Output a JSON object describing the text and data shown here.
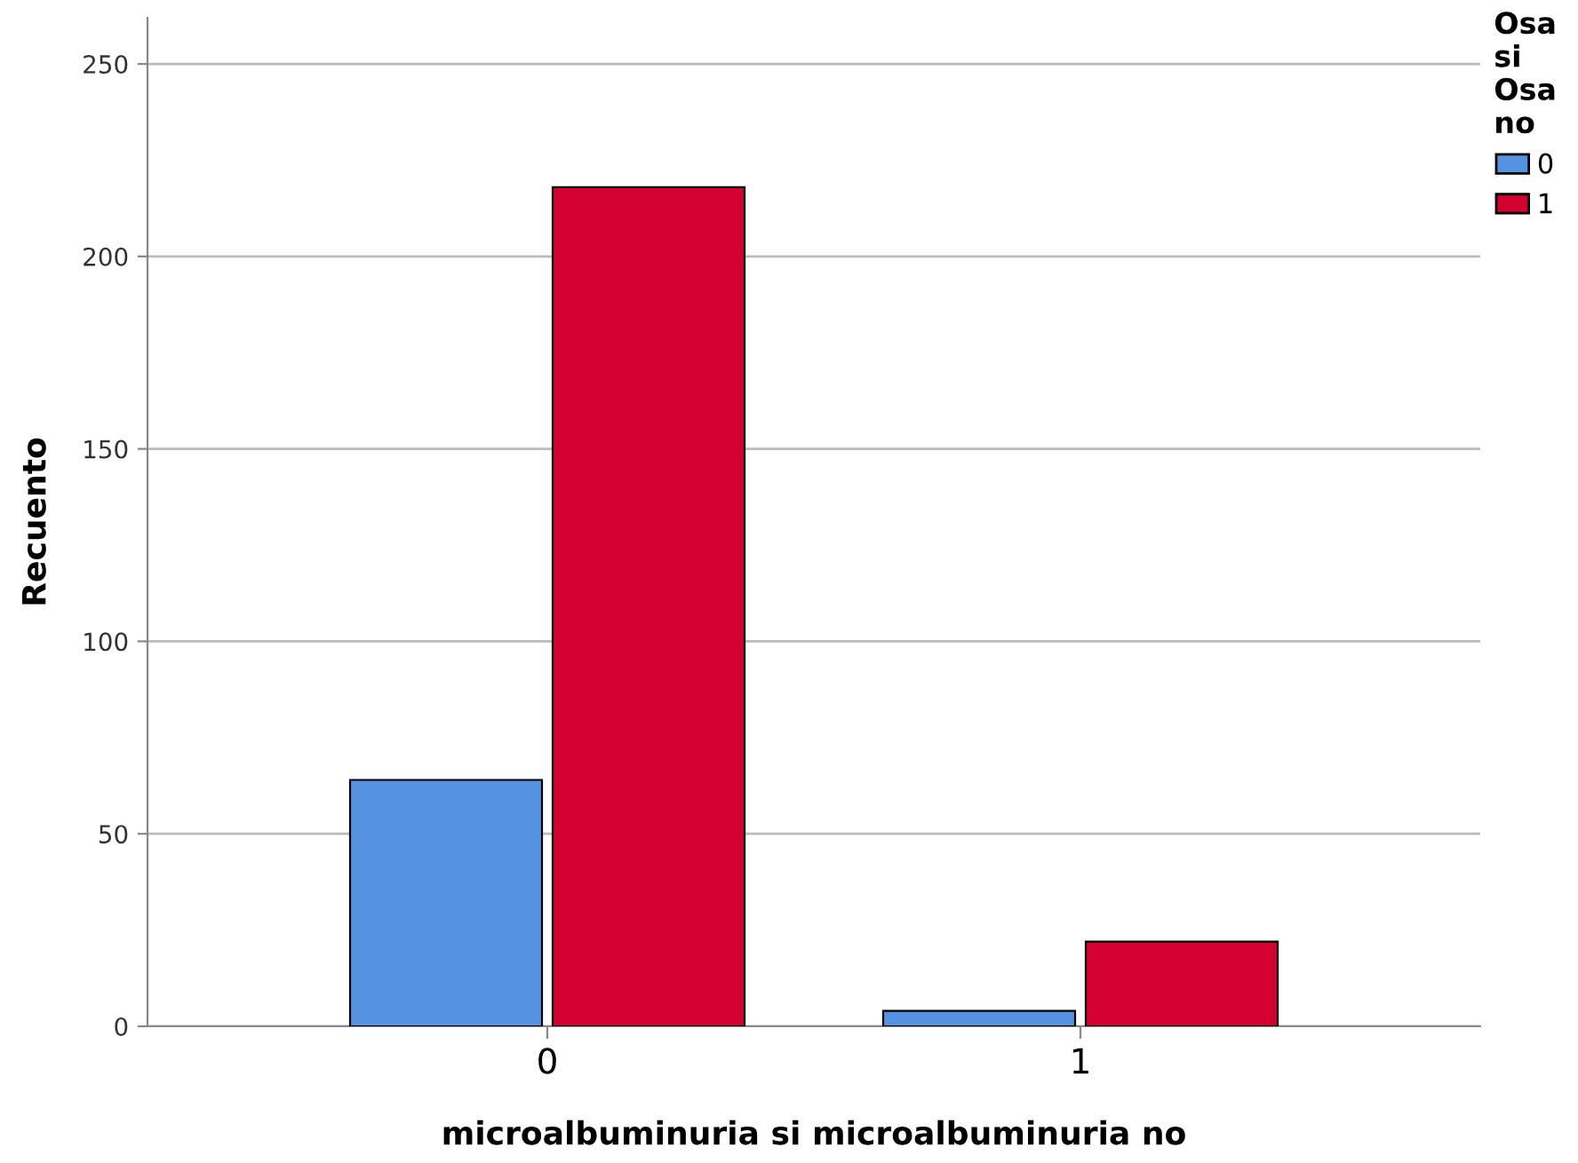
{
  "chart_data": {
    "type": "bar",
    "xlabel": "microalbuminuria si microalbuminuria no",
    "ylabel": "Recuento",
    "legend_title": "Osa si Osa no",
    "categories": [
      "0",
      "1"
    ],
    "series": [
      {
        "name": "0",
        "color": "#5593e2",
        "values": [
          64,
          4
        ]
      },
      {
        "name": "1",
        "color": "#d40030",
        "values": [
          218,
          22
        ]
      }
    ],
    "ylim": [
      0,
      262
    ],
    "yticks": [
      0,
      50,
      100,
      150,
      200,
      250
    ],
    "grid": "y",
    "legend": "top right"
  }
}
